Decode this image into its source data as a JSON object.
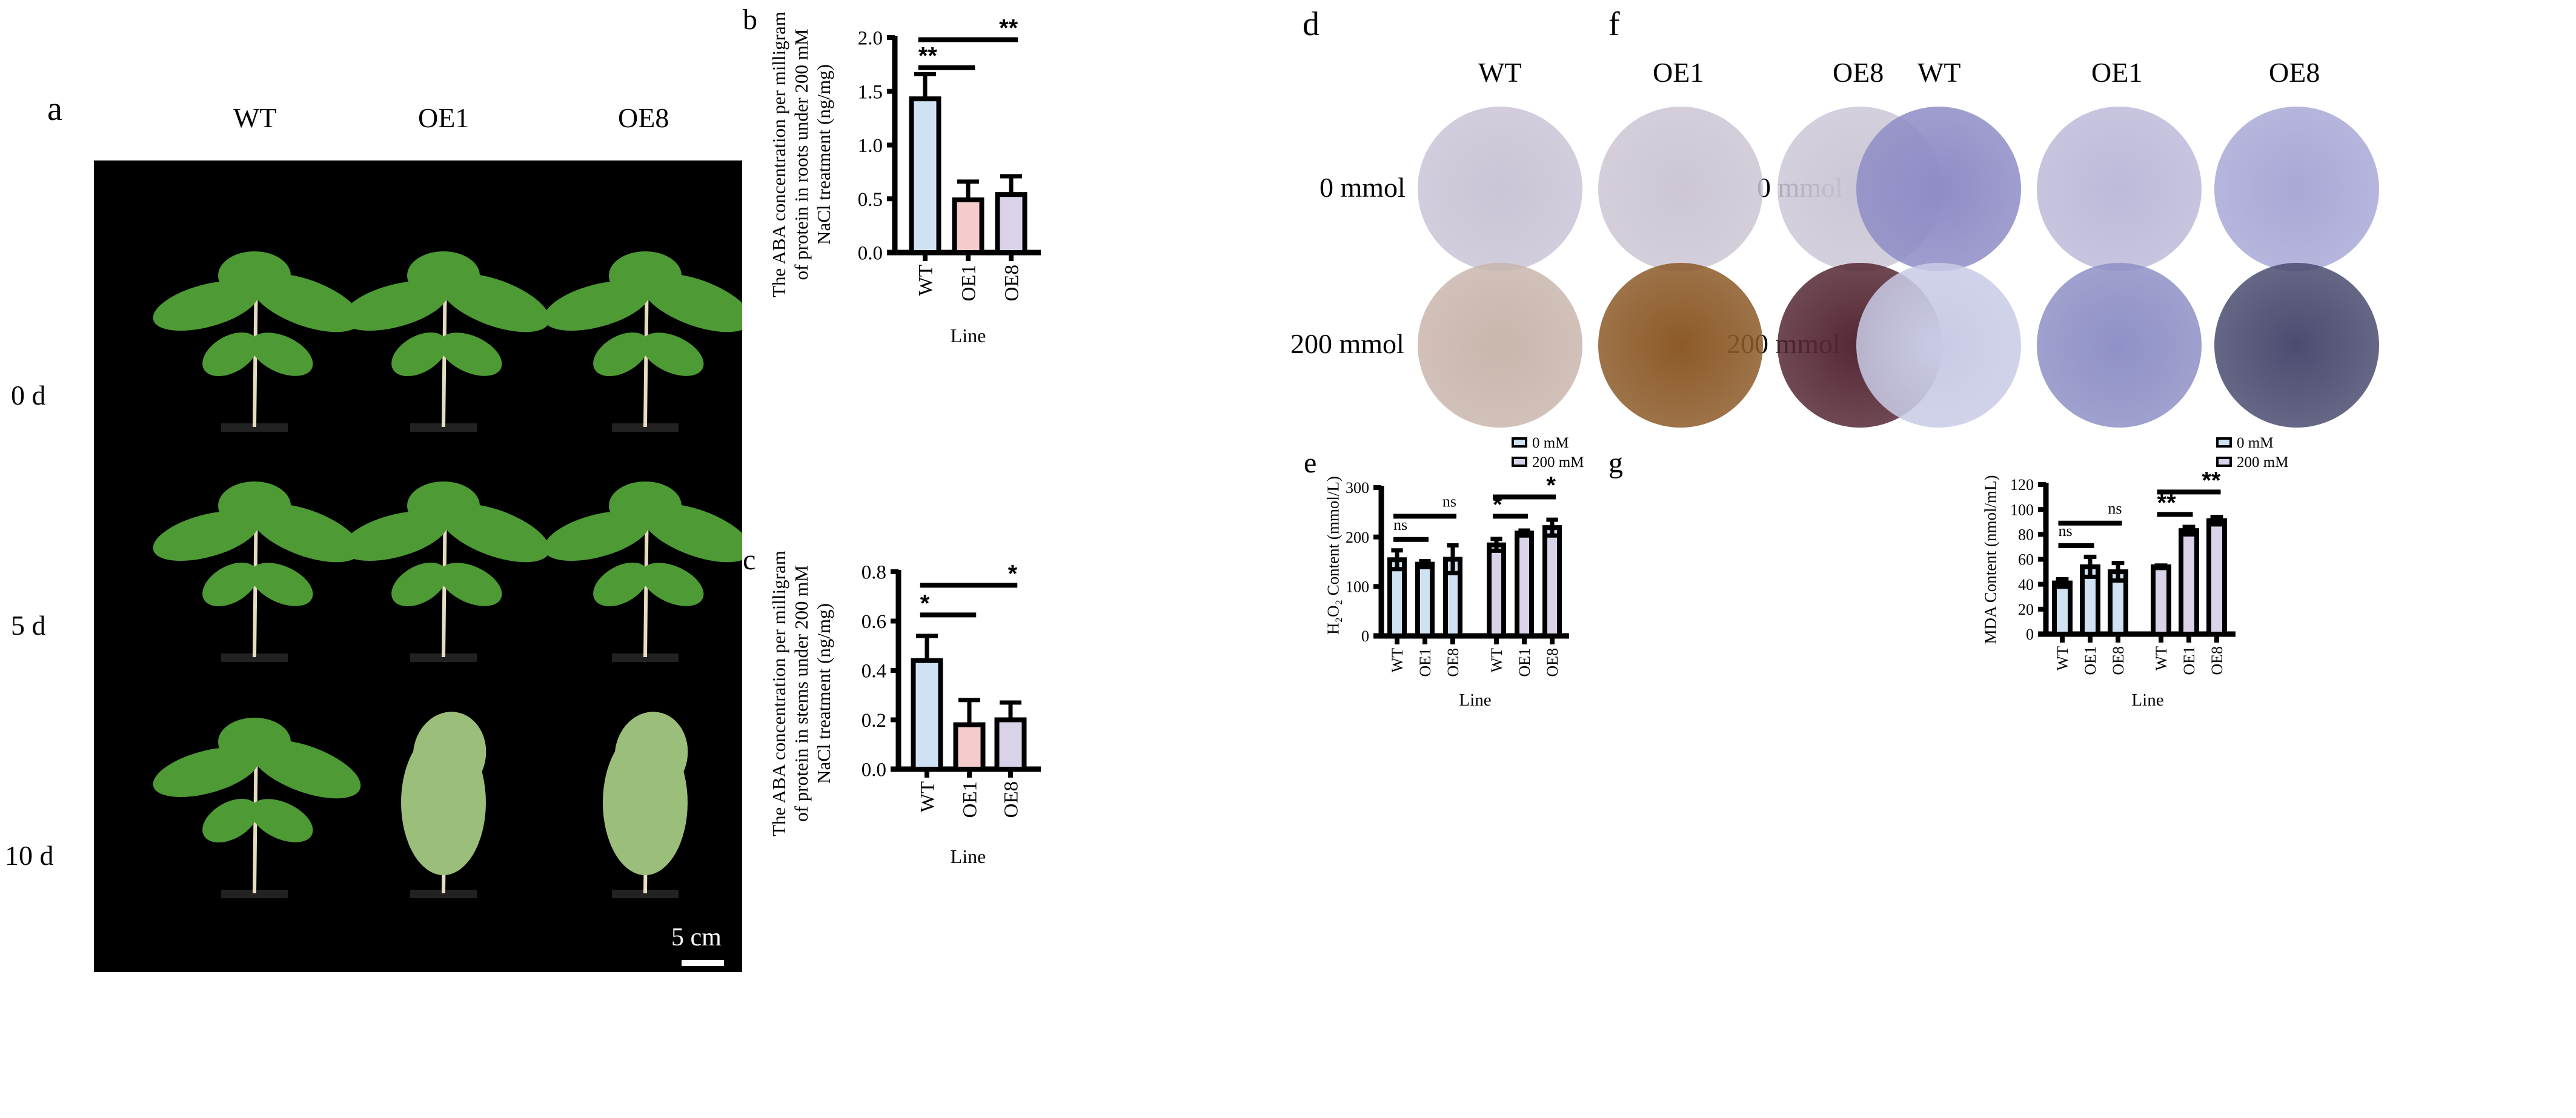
{
  "panel_a": {
    "letter": "a",
    "columns": [
      "WT",
      "OE1",
      "OE8"
    ],
    "rows": [
      "0 d",
      "5 d",
      "10 d"
    ],
    "scale_bar": "5 cm"
  },
  "panel_d": {
    "letter": "d",
    "columns": [
      "WT",
      "OE1",
      "OE8"
    ],
    "rows": [
      "0 mmol",
      "200 mmol"
    ],
    "colors": [
      [
        "#cac4d6",
        "#cdc6d4",
        "#ccc7d6"
      ],
      [
        "#c9b6ad",
        "#8c5a28",
        "#552834"
      ]
    ]
  },
  "panel_f": {
    "letter": "f",
    "columns": [
      "WT",
      "OE1",
      "OE8"
    ],
    "rows": [
      "0 mmol",
      "200 mmol"
    ],
    "colors": [
      [
        "#8f8cc6",
        "#bcbad9",
        "#a9a8d6"
      ],
      [
        "#c9cbe6",
        "#8f90c6",
        "#4b4c70"
      ]
    ]
  },
  "chart_data": [
    {
      "id": "b",
      "letter": "b",
      "type": "bar",
      "categories": [
        "WT",
        "OE1",
        "OE8"
      ],
      "values": [
        1.43,
        0.49,
        0.54
      ],
      "errors": [
        0.23,
        0.17,
        0.17
      ],
      "colors": [
        "#cfe2f3",
        "#f4cccc",
        "#d9d2e9"
      ],
      "ylabel": [
        "The ABA concentration per milligram",
        "of protein in roots under 200 mM",
        "NaCl treatment (ng/mg)"
      ],
      "xlabel": "Line",
      "ylim": [
        0,
        2.0
      ],
      "yticks": [
        "0.0",
        "0.5",
        "1.0",
        "1.5",
        "2.0"
      ],
      "significance": [
        {
          "from": 0,
          "to": 1,
          "y": 1.72,
          "label": "**"
        },
        {
          "from": 0,
          "to": 2,
          "y": 1.98,
          "label": "**"
        }
      ]
    },
    {
      "id": "c",
      "letter": "c",
      "type": "bar",
      "categories": [
        "WT",
        "OE1",
        "OE8"
      ],
      "values": [
        0.44,
        0.18,
        0.2
      ],
      "errors": [
        0.1,
        0.1,
        0.07
      ],
      "colors": [
        "#cfe2f3",
        "#f4cccc",
        "#d9d2e9"
      ],
      "ylabel": [
        "The ABA concentration per milligram",
        "of protein  in stems under 200 mM",
        "NaCl treatment (ng/mg)"
      ],
      "xlabel": "Line",
      "ylim": [
        0,
        0.8
      ],
      "yticks": [
        "0.0",
        "0.2",
        "0.4",
        "0.6",
        "0.8"
      ],
      "significance": [
        {
          "from": 0,
          "to": 1,
          "y": 0.625,
          "label": "*"
        },
        {
          "from": 0,
          "to": 2,
          "y": 0.745,
          "label": "*"
        }
      ]
    },
    {
      "id": "e",
      "letter": "e",
      "type": "bar",
      "categories": [
        "WT",
        "OE1",
        "OE8"
      ],
      "series": [
        {
          "name": "0 mM",
          "values": [
            154,
            145,
            155
          ],
          "errors": [
            19,
            6,
            28
          ],
          "color": "#cfe2f3"
        },
        {
          "name": "200 mM",
          "values": [
            184,
            208,
            219
          ],
          "errors": [
            12,
            5,
            16
          ],
          "color": "#d9d2e9"
        }
      ],
      "ylabel": [
        "H₂O₂ Content (mmol/L)"
      ],
      "xlabel": "Line",
      "ylim": [
        0,
        300
      ],
      "yticks": [
        "0",
        "100",
        "200",
        "300"
      ],
      "legend": "top-right",
      "significance": [
        {
          "from": 0,
          "to": 1,
          "y": 195,
          "label": "ns"
        },
        {
          "from": 0,
          "to": 2,
          "y": 242,
          "label": "ns"
        },
        {
          "from": 3,
          "to": 4,
          "y": 242,
          "label": "*"
        },
        {
          "from": 3,
          "to": 5,
          "y": 281,
          "label": "*"
        }
      ]
    },
    {
      "id": "g",
      "letter": "g",
      "type": "bar",
      "categories": [
        "WT",
        "OE1",
        "OE8"
      ],
      "series": [
        {
          "name": "0 mM",
          "values": [
            41,
            54,
            50
          ],
          "errors": [
            3,
            8,
            7
          ],
          "color": "#cfe2f3"
        },
        {
          "name": "200 mM",
          "values": [
            54,
            83,
            91
          ],
          "errors": [
            1,
            3,
            3
          ],
          "color": "#d9d2e9"
        }
      ],
      "ylabel": [
        "MDA Content (nmol/mL)"
      ],
      "xlabel": "Line",
      "ylim": [
        0,
        120
      ],
      "yticks": [
        "0",
        "20",
        "40",
        "60",
        "80",
        "100",
        "120"
      ],
      "legend": "top-right",
      "significance": [
        {
          "from": 0,
          "to": 1,
          "y": 71,
          "label": "ns"
        },
        {
          "from": 0,
          "to": 2,
          "y": 89,
          "label": "ns"
        },
        {
          "from": 3,
          "to": 4,
          "y": 96,
          "label": "**"
        },
        {
          "from": 3,
          "to": 5,
          "y": 114,
          "label": "**"
        }
      ]
    }
  ]
}
